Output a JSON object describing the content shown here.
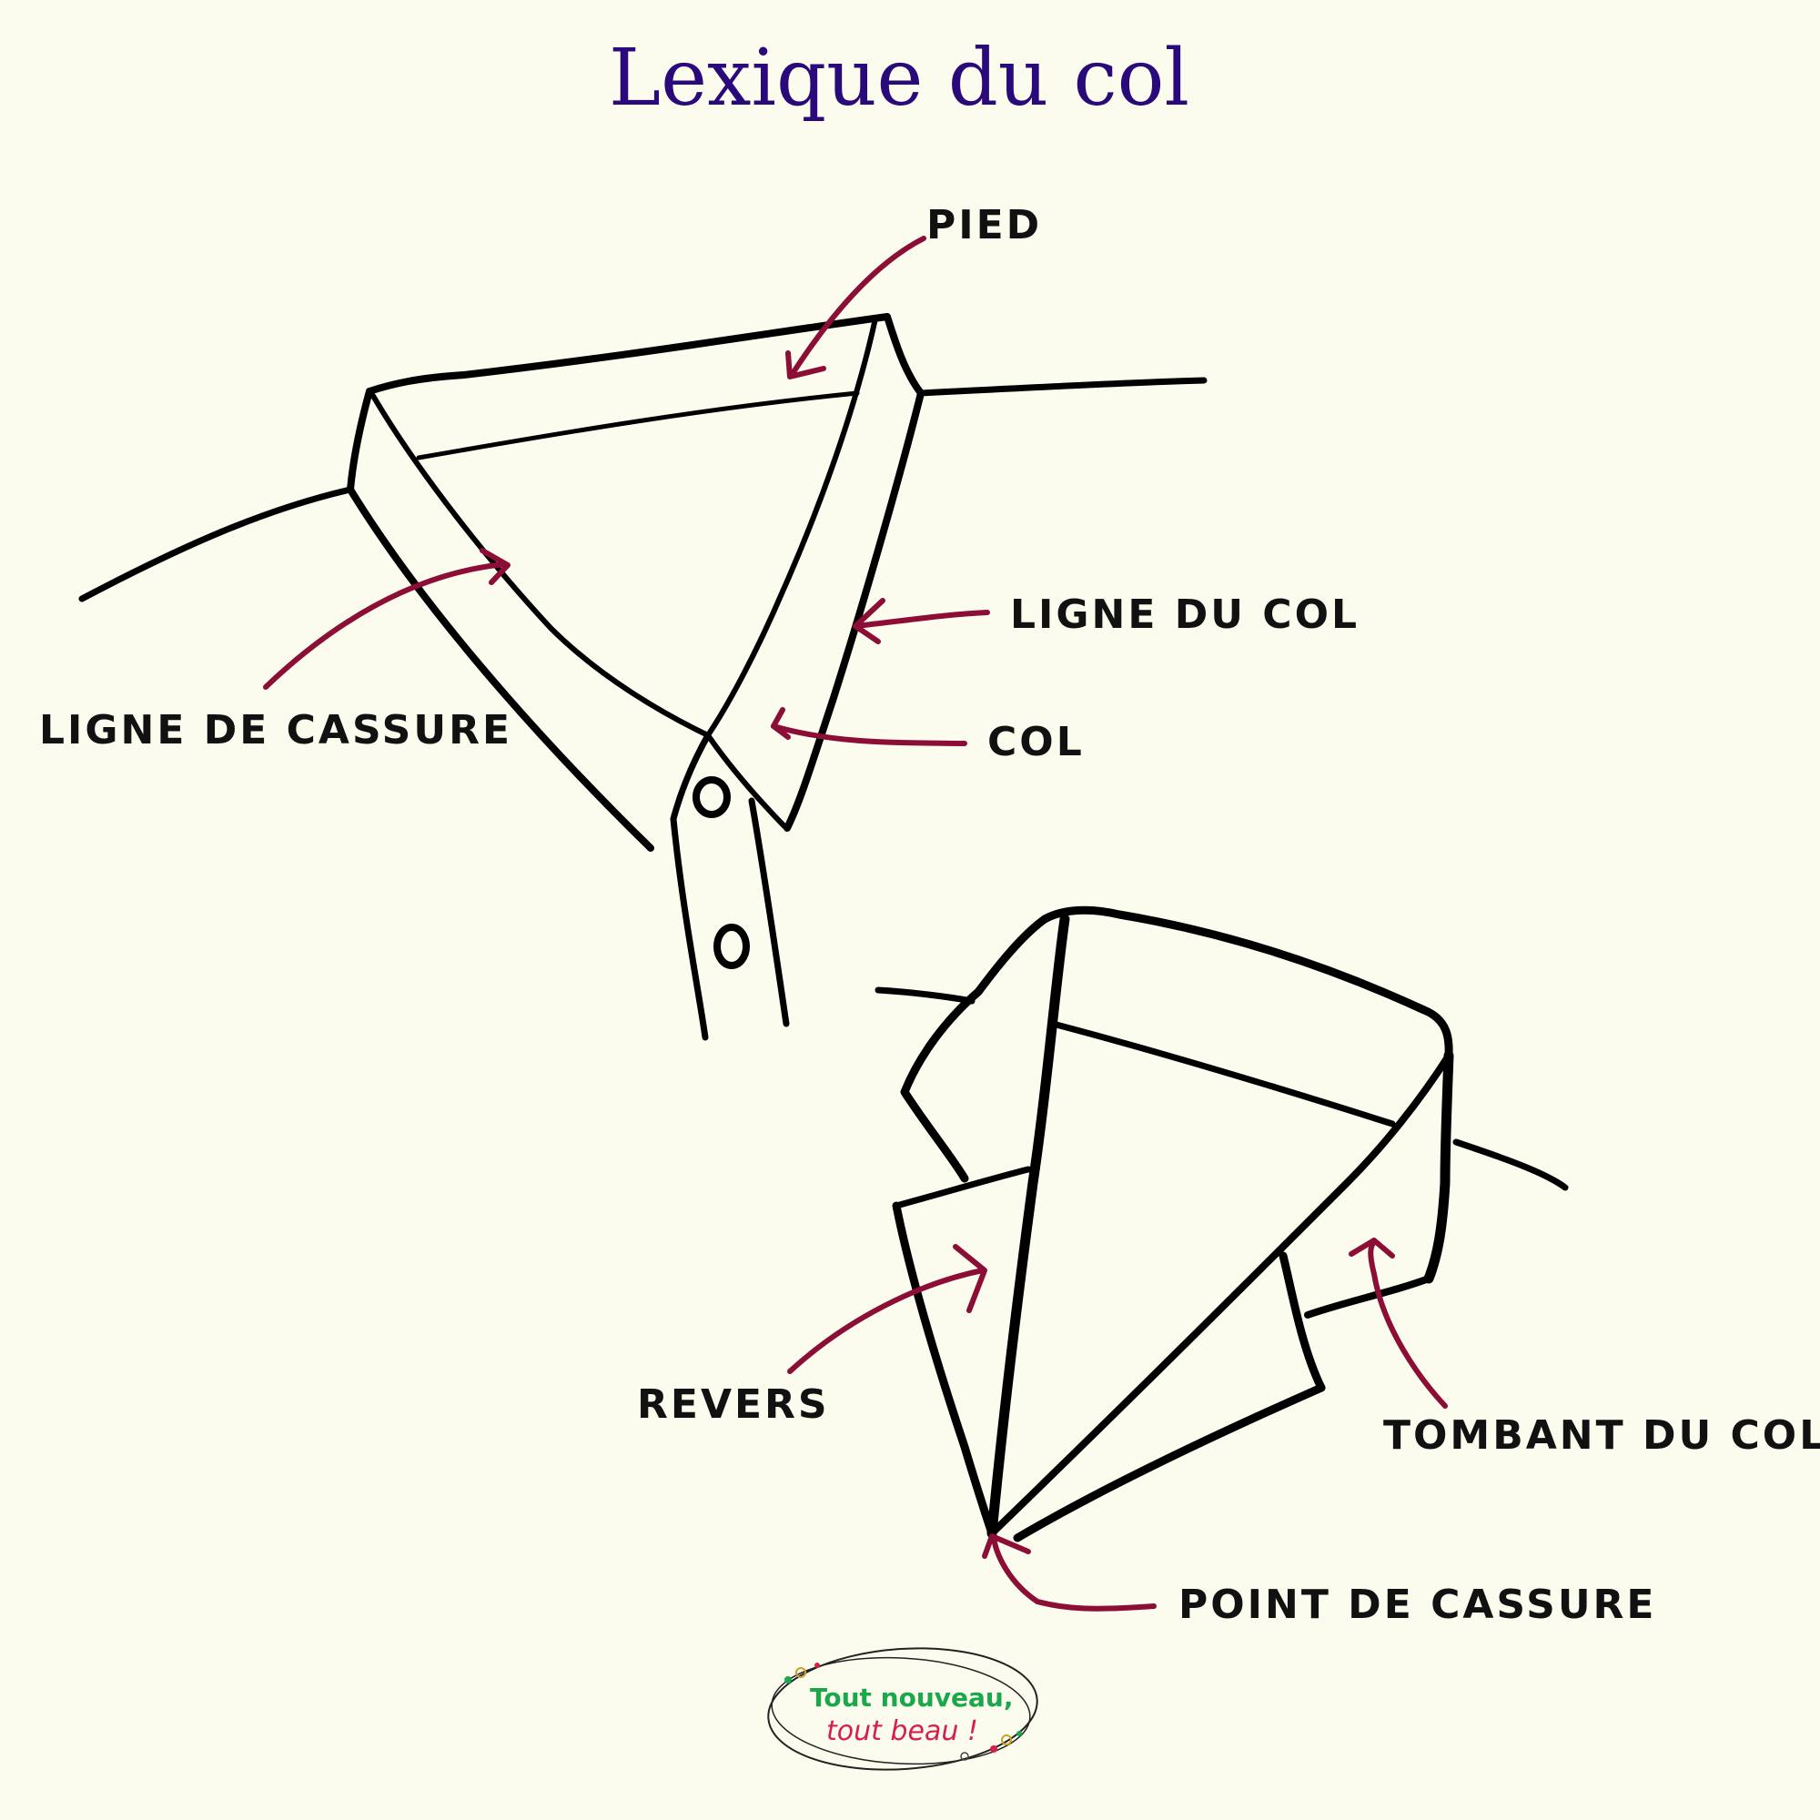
{
  "title": "Lexique du col",
  "colors": {
    "background": "#fbfcee",
    "title": "#2a0a7a",
    "arrow": "#8c0d35",
    "ink": "#000000",
    "logo_green": "#1aa84a",
    "logo_red": "#d6204a"
  },
  "labels": {
    "pied": "PIED",
    "ligne_du_col": "LIGNE DU COL",
    "ligne_de_cassure": "LIGNE DE CASSURE",
    "col": "COL",
    "revers": "REVERS",
    "tombant_du_col": "TOMBANT DU COL",
    "point_de_cassure": "POINT DE CASSURE"
  },
  "logo": {
    "line1": "Tout nouveau,",
    "line2": "tout beau !"
  }
}
